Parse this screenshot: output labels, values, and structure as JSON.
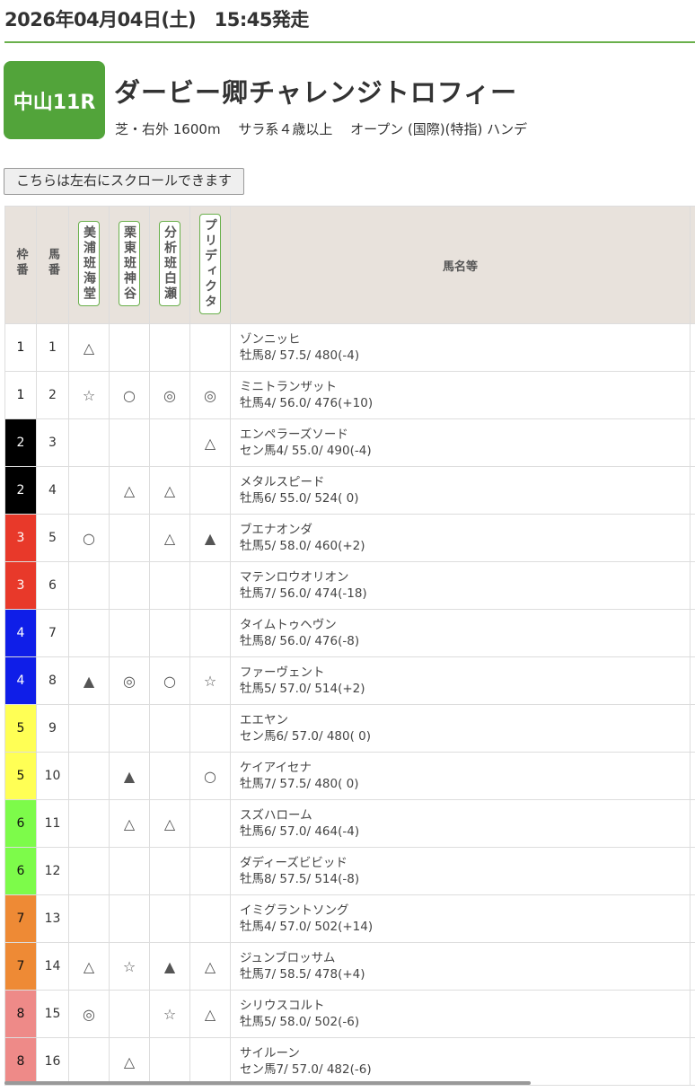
{
  "header": {
    "date": "2026年04月04日(土)　15:45発走"
  },
  "race": {
    "badge": "中山11R",
    "title": "ダービー卿チャレンジトロフィー",
    "conditions": "芝・右外 1600m　 サラ系４歳以上　 オープン (国際)(特指) ハンデ"
  },
  "scroll_button": "こちらは左右にスクロールできます",
  "table": {
    "headers": {
      "waku": "枠番",
      "umaban": "馬番",
      "p1": "美浦班海堂",
      "p2": "栗東班神谷",
      "p3": "分析班白瀬",
      "p4": "プリディクタ",
      "name": "馬名等"
    },
    "waku_colors": {
      "1": "#ffffff",
      "2": "#000000",
      "3": "#e8392a",
      "4": "#0f1ee8",
      "5": "#ffff55",
      "6": "#7dfb4a",
      "7": "#ee8a35",
      "8": "#ee8a88"
    },
    "rows": [
      {
        "waku": "1",
        "num": "1",
        "marks": [
          "△",
          "",
          "",
          ""
        ],
        "name": "ゾンニッヒ",
        "info": "牡馬8/ 57.5/ 480(-4)"
      },
      {
        "waku": "1",
        "num": "2",
        "marks": [
          "☆",
          "○",
          "◎",
          "◎"
        ],
        "name": "ミニトランザット",
        "info": "牡馬4/ 56.0/ 476(+10)"
      },
      {
        "waku": "2",
        "num": "3",
        "marks": [
          "",
          "",
          "",
          "△"
        ],
        "name": "エンペラーズソード",
        "info": "セン馬4/ 55.0/ 490(-4)"
      },
      {
        "waku": "2",
        "num": "4",
        "marks": [
          "",
          "△",
          "△",
          ""
        ],
        "name": "メタルスピード",
        "info": "牡馬6/ 55.0/ 524( 0)"
      },
      {
        "waku": "3",
        "num": "5",
        "marks": [
          "○",
          "",
          "△",
          "▲"
        ],
        "name": "ブエナオンダ",
        "info": "牡馬5/ 58.0/ 460(+2)"
      },
      {
        "waku": "3",
        "num": "6",
        "marks": [
          "",
          "",
          "",
          ""
        ],
        "name": "マテンロウオリオン",
        "info": "牡馬7/ 56.0/ 474(-18)"
      },
      {
        "waku": "4",
        "num": "7",
        "marks": [
          "",
          "",
          "",
          ""
        ],
        "name": "タイムトゥヘヴン",
        "info": "牡馬8/ 56.0/ 476(-8)"
      },
      {
        "waku": "4",
        "num": "8",
        "marks": [
          "▲",
          "◎",
          "○",
          "☆"
        ],
        "name": "ファーヴェント",
        "info": "牡馬5/ 57.0/ 514(+2)"
      },
      {
        "waku": "5",
        "num": "9",
        "marks": [
          "",
          "",
          "",
          ""
        ],
        "name": "エエヤン",
        "info": "セン馬6/ 57.0/ 480( 0)"
      },
      {
        "waku": "5",
        "num": "10",
        "marks": [
          "",
          "▲",
          "",
          "○"
        ],
        "name": "ケイアイセナ",
        "info": "牡馬7/ 57.5/ 480( 0)"
      },
      {
        "waku": "6",
        "num": "11",
        "marks": [
          "",
          "△",
          "△",
          ""
        ],
        "name": "スズハローム",
        "info": "牡馬6/ 57.0/ 464(-4)"
      },
      {
        "waku": "6",
        "num": "12",
        "marks": [
          "",
          "",
          "",
          ""
        ],
        "name": "ダディーズビビッド",
        "info": "牡馬8/ 57.5/ 514(-8)"
      },
      {
        "waku": "7",
        "num": "13",
        "marks": [
          "",
          "",
          "",
          ""
        ],
        "name": "イミグラントソング",
        "info": "牡馬4/ 57.0/ 502(+14)"
      },
      {
        "waku": "7",
        "num": "14",
        "marks": [
          "△",
          "☆",
          "▲",
          "△"
        ],
        "name": "ジュンブロッサム",
        "info": "牡馬7/ 58.5/ 478(+4)"
      },
      {
        "waku": "8",
        "num": "15",
        "marks": [
          "◎",
          "",
          "☆",
          "△"
        ],
        "name": "シリウスコルト",
        "info": "牡馬5/ 58.0/ 502(-6)"
      },
      {
        "waku": "8",
        "num": "16",
        "marks": [
          "",
          "△",
          "",
          ""
        ],
        "name": "サイルーン",
        "info": "セン馬7/ 57.0/ 482(-6)"
      }
    ]
  }
}
